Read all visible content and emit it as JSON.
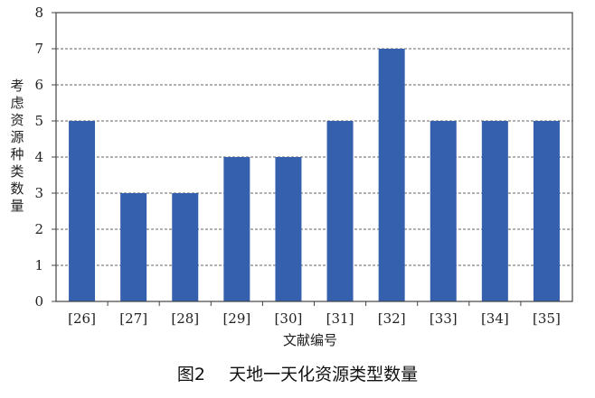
{
  "chart_data": {
    "type": "bar",
    "categories": [
      "[26]",
      "[27]",
      "[28]",
      "[29]",
      "[30]",
      "[31]",
      "[32]",
      "[33]",
      "[34]",
      "[35]"
    ],
    "values": [
      5,
      3,
      3,
      4,
      4,
      5,
      7,
      5,
      5,
      5
    ],
    "xlabel": "文献编号",
    "ylabel": "考虑资源种类数量",
    "ylim": [
      0,
      8
    ],
    "yticks": [
      0,
      1,
      2,
      3,
      4,
      5,
      6,
      7,
      8
    ],
    "grid": true,
    "bar_color": "#3560AE"
  },
  "caption": {
    "figure_no": "图2",
    "text": "天地一天化资源类型数量"
  }
}
